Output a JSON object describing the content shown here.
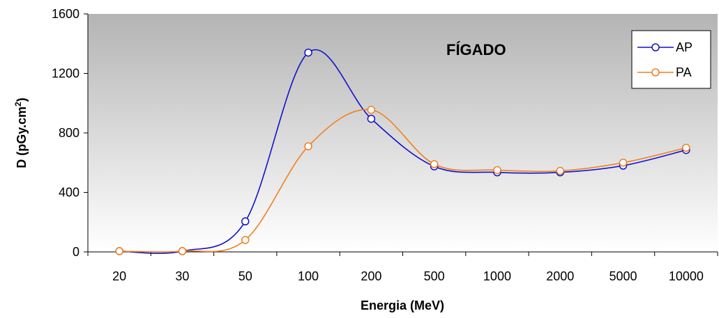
{
  "chart_data": {
    "type": "line",
    "title": "",
    "annotation": "FÍGADO",
    "xlabel": "Energia (MeV)",
    "ylabel": "D (pGy.cm²)",
    "x_scale": "categorical",
    "categories": [
      "20",
      "30",
      "50",
      "100",
      "200",
      "500",
      "1000",
      "2000",
      "5000",
      "10000"
    ],
    "ylim": [
      0,
      1600
    ],
    "yticks": [
      0,
      400,
      800,
      1200,
      1600
    ],
    "ytick_labels": [
      "0",
      "400",
      "800",
      "1200",
      "1600"
    ],
    "grid": false,
    "legend_position": "top-right",
    "background": "gradient gray to white",
    "series": [
      {
        "name": "AP",
        "color": "#1111cc",
        "marker": "open-circle",
        "values": [
          5,
          5,
          205,
          1340,
          895,
          575,
          535,
          535,
          580,
          685
        ]
      },
      {
        "name": "PA",
        "color": "#f07f20",
        "marker": "open-circle",
        "values": [
          5,
          5,
          80,
          710,
          955,
          590,
          550,
          545,
          600,
          700
        ]
      }
    ]
  }
}
